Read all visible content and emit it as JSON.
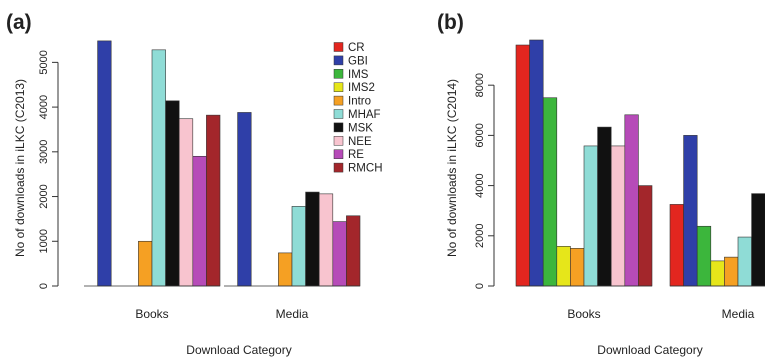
{
  "chart_data": [
    {
      "type": "bar",
      "panel_label": "(a)",
      "title": "",
      "xlabel": "Download Category",
      "ylabel": "No of downloads in iLKC (C2013)",
      "categories": [
        "Books",
        "Media"
      ],
      "ylim": [
        0,
        5500
      ],
      "yticks": [
        0,
        1000,
        2000,
        3000,
        4000,
        5000
      ],
      "grid": false,
      "legend_position": "top-right",
      "series": [
        {
          "name": "CR",
          "color": "#e3261f",
          "values": [
            0,
            0
          ]
        },
        {
          "name": "GBI",
          "color": "#2f3fa8",
          "values": [
            5480,
            3880
          ]
        },
        {
          "name": "IMS",
          "color": "#3cb63c",
          "values": [
            0,
            0
          ]
        },
        {
          "name": "IMS2",
          "color": "#e6e61a",
          "values": [
            0,
            0
          ]
        },
        {
          "name": "Intro",
          "color": "#f5a023",
          "values": [
            1000,
            740
          ]
        },
        {
          "name": "MHAF",
          "color": "#8fdcd6",
          "values": [
            5280,
            1780
          ]
        },
        {
          "name": "MSK",
          "color": "#111111",
          "values": [
            4140,
            2100
          ]
        },
        {
          "name": "NEE",
          "color": "#f8c4cf",
          "values": [
            3740,
            2060
          ]
        },
        {
          "name": "RE",
          "color": "#b64bb8",
          "values": [
            2900,
            1440
          ]
        },
        {
          "name": "RMCH",
          "color": "#a3262b",
          "values": [
            3820,
            1570
          ]
        }
      ]
    },
    {
      "type": "bar",
      "panel_label": "(b)",
      "title": "",
      "xlabel": "Download Category",
      "ylabel": "No of downloads in iLKC (C2014)",
      "categories": [
        "Books",
        "Media"
      ],
      "ylim": [
        0,
        9800
      ],
      "yticks": [
        0,
        2000,
        4000,
        6000,
        8000
      ],
      "grid": false,
      "legend_position": "none",
      "series": [
        {
          "name": "CR",
          "color": "#e3261f",
          "values": [
            9600,
            3250
          ]
        },
        {
          "name": "GBI",
          "color": "#2f3fa8",
          "values": [
            9800,
            6000
          ]
        },
        {
          "name": "IMS",
          "color": "#3cb63c",
          "values": [
            7500,
            2380
          ]
        },
        {
          "name": "IMS2",
          "color": "#e6e61a",
          "values": [
            1580,
            1000
          ]
        },
        {
          "name": "Intro",
          "color": "#f5a023",
          "values": [
            1500,
            1150
          ]
        },
        {
          "name": "MHAF",
          "color": "#8fdcd6",
          "values": [
            5580,
            1950
          ]
        },
        {
          "name": "MSK",
          "color": "#111111",
          "values": [
            6330,
            3680
          ]
        },
        {
          "name": "NEE",
          "color": "#f8c4cf",
          "values": [
            5580,
            0
          ]
        },
        {
          "name": "RE",
          "color": "#b64bb8",
          "values": [
            6820,
            0
          ]
        },
        {
          "name": "RMCH",
          "color": "#a3262b",
          "values": [
            4000,
            0
          ]
        }
      ]
    }
  ]
}
